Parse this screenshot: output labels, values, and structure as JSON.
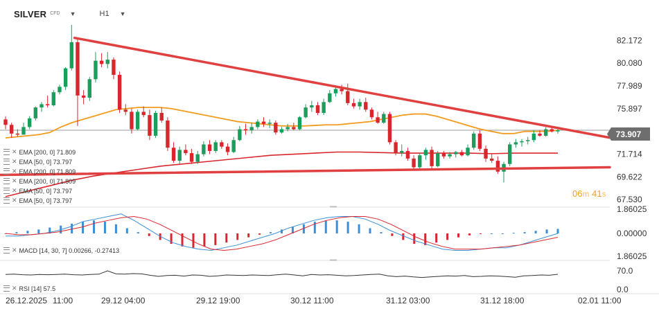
{
  "header": {
    "symbol": "SILVER",
    "instrument_type": "CFD",
    "timeframe": "H1"
  },
  "indicators": [
    {
      "label": "EMA [200, 0]",
      "value": "71.809"
    },
    {
      "label": "EMA [50, 0]",
      "value": "73.797"
    },
    {
      "label": "EMA [200, 0]",
      "value": "71.809"
    },
    {
      "label": "EMA [200, 0]",
      "value": "71.809"
    },
    {
      "label": "EMA [50, 0]",
      "value": "73.797"
    },
    {
      "label": "EMA [50, 0]",
      "value": "73.797"
    }
  ],
  "macd_label": {
    "label": "MACD [14, 30, 7]",
    "value": "0.00266,  -0.27413"
  },
  "rsi_label": {
    "label": "RSI [14]",
    "value": "57.5"
  },
  "countdown": {
    "minutes": "06",
    "min_unit": "m",
    "seconds": "41",
    "sec_unit": "s"
  },
  "current_price": "73.907",
  "colors": {
    "up": "#1a9e5c",
    "down": "#d9262c",
    "ema50": "#f29b1d",
    "ema200": "#d9262c",
    "trendline": "#e04040",
    "macd_line": "#3a8fd6",
    "signal_line": "#d9262c",
    "rsi_line": "#333333"
  },
  "chart_data": [
    {
      "type": "candlestick",
      "title": "SILVER CFD H1",
      "x_ticks": [
        "26.12.2025",
        "11:00",
        "29.12 04:00",
        "29.12 19:00",
        "30.12 11:00",
        "31.12 03:00",
        "31.12 18:00",
        "02.01 11:00"
      ],
      "y_ticks": [
        "82.172",
        "80.080",
        "77.989",
        "75.897",
        "73.907",
        "71.714",
        "69.622",
        "67.530"
      ],
      "ylim": [
        66.9,
        84.1
      ],
      "candles": [
        {
          "o": 74.9,
          "h": 75.2,
          "l": 74.0,
          "c": 74.4
        },
        {
          "o": 74.4,
          "h": 74.6,
          "l": 73.2,
          "c": 73.6
        },
        {
          "o": 73.6,
          "h": 74.0,
          "l": 73.3,
          "c": 73.5
        },
        {
          "o": 73.5,
          "h": 74.6,
          "l": 73.5,
          "c": 74.2
        },
        {
          "o": 74.2,
          "h": 75.2,
          "l": 74.0,
          "c": 75.0
        },
        {
          "o": 75.0,
          "h": 76.1,
          "l": 74.8,
          "c": 76.0
        },
        {
          "o": 76.0,
          "h": 76.5,
          "l": 75.6,
          "c": 76.3
        },
        {
          "o": 76.3,
          "h": 77.1,
          "l": 76.0,
          "c": 76.2
        },
        {
          "o": 76.2,
          "h": 77.6,
          "l": 76.1,
          "c": 77.4
        },
        {
          "o": 77.4,
          "h": 78.1,
          "l": 77.2,
          "c": 77.9
        },
        {
          "o": 77.9,
          "h": 79.7,
          "l": 77.6,
          "c": 79.6
        },
        {
          "o": 79.6,
          "h": 83.6,
          "l": 79.4,
          "c": 82.0
        },
        {
          "o": 82.0,
          "h": 82.4,
          "l": 74.3,
          "c": 77.1
        },
        {
          "o": 77.1,
          "h": 77.6,
          "l": 76.3,
          "c": 76.9
        },
        {
          "o": 76.9,
          "h": 78.8,
          "l": 76.6,
          "c": 78.6
        },
        {
          "o": 78.6,
          "h": 81.1,
          "l": 78.3,
          "c": 80.3
        },
        {
          "o": 80.3,
          "h": 81.0,
          "l": 79.7,
          "c": 80.0
        },
        {
          "o": 80.0,
          "h": 81.1,
          "l": 79.6,
          "c": 80.4
        },
        {
          "o": 80.4,
          "h": 80.6,
          "l": 78.6,
          "c": 79.0
        },
        {
          "o": 79.0,
          "h": 79.3,
          "l": 75.5,
          "c": 75.8
        },
        {
          "o": 75.8,
          "h": 76.3,
          "l": 75.3,
          "c": 75.6
        },
        {
          "o": 75.6,
          "h": 75.9,
          "l": 73.6,
          "c": 74.0
        },
        {
          "o": 74.0,
          "h": 75.8,
          "l": 73.9,
          "c": 75.6
        },
        {
          "o": 75.6,
          "h": 76.1,
          "l": 75.1,
          "c": 75.3
        },
        {
          "o": 75.3,
          "h": 75.8,
          "l": 73.0,
          "c": 73.4
        },
        {
          "o": 73.4,
          "h": 75.7,
          "l": 73.2,
          "c": 75.5
        },
        {
          "o": 75.5,
          "h": 76.0,
          "l": 74.6,
          "c": 74.8
        },
        {
          "o": 74.8,
          "h": 75.1,
          "l": 72.0,
          "c": 72.3
        },
        {
          "o": 72.3,
          "h": 72.8,
          "l": 70.9,
          "c": 71.1
        },
        {
          "o": 71.1,
          "h": 72.4,
          "l": 70.8,
          "c": 72.1
        },
        {
          "o": 72.1,
          "h": 72.6,
          "l": 71.6,
          "c": 71.8
        },
        {
          "o": 71.8,
          "h": 72.2,
          "l": 70.8,
          "c": 71.0
        },
        {
          "o": 71.0,
          "h": 72.0,
          "l": 70.8,
          "c": 71.7
        },
        {
          "o": 71.7,
          "h": 72.9,
          "l": 71.5,
          "c": 72.6
        },
        {
          "o": 72.6,
          "h": 73.0,
          "l": 71.7,
          "c": 72.0
        },
        {
          "o": 72.0,
          "h": 73.0,
          "l": 71.8,
          "c": 72.8
        },
        {
          "o": 72.8,
          "h": 73.0,
          "l": 72.2,
          "c": 72.4
        },
        {
          "o": 72.4,
          "h": 72.7,
          "l": 71.6,
          "c": 71.9
        },
        {
          "o": 71.9,
          "h": 73.3,
          "l": 71.8,
          "c": 73.0
        },
        {
          "o": 73.0,
          "h": 74.3,
          "l": 72.9,
          "c": 74.0
        },
        {
          "o": 74.0,
          "h": 74.5,
          "l": 73.5,
          "c": 73.9
        },
        {
          "o": 73.9,
          "h": 74.6,
          "l": 73.6,
          "c": 74.2
        },
        {
          "o": 74.2,
          "h": 74.9,
          "l": 74.0,
          "c": 74.7
        },
        {
          "o": 74.7,
          "h": 75.1,
          "l": 74.2,
          "c": 74.5
        },
        {
          "o": 74.5,
          "h": 74.9,
          "l": 74.1,
          "c": 74.6
        },
        {
          "o": 74.6,
          "h": 74.8,
          "l": 73.5,
          "c": 73.7
        },
        {
          "o": 73.7,
          "h": 74.2,
          "l": 73.6,
          "c": 74.0
        },
        {
          "o": 74.0,
          "h": 74.5,
          "l": 73.8,
          "c": 74.2
        },
        {
          "o": 74.2,
          "h": 74.6,
          "l": 73.9,
          "c": 74.0
        },
        {
          "o": 74.0,
          "h": 75.2,
          "l": 73.9,
          "c": 75.1
        },
        {
          "o": 75.1,
          "h": 76.3,
          "l": 75.0,
          "c": 76.0
        },
        {
          "o": 76.0,
          "h": 76.6,
          "l": 75.6,
          "c": 76.2
        },
        {
          "o": 76.2,
          "h": 76.5,
          "l": 75.3,
          "c": 75.5
        },
        {
          "o": 75.5,
          "h": 76.8,
          "l": 75.3,
          "c": 76.5
        },
        {
          "o": 76.5,
          "h": 77.6,
          "l": 76.4,
          "c": 77.3
        },
        {
          "o": 77.3,
          "h": 78.0,
          "l": 77.0,
          "c": 77.7
        },
        {
          "o": 77.7,
          "h": 78.1,
          "l": 77.2,
          "c": 77.5
        },
        {
          "o": 77.5,
          "h": 78.2,
          "l": 76.2,
          "c": 76.4
        },
        {
          "o": 76.4,
          "h": 76.8,
          "l": 75.9,
          "c": 76.1
        },
        {
          "o": 76.1,
          "h": 76.8,
          "l": 75.8,
          "c": 76.5
        },
        {
          "o": 76.5,
          "h": 76.9,
          "l": 75.6,
          "c": 75.8
        },
        {
          "o": 75.8,
          "h": 76.0,
          "l": 74.9,
          "c": 75.1
        },
        {
          "o": 75.1,
          "h": 75.6,
          "l": 74.5,
          "c": 74.6
        },
        {
          "o": 74.6,
          "h": 75.6,
          "l": 74.5,
          "c": 75.4
        },
        {
          "o": 75.4,
          "h": 75.6,
          "l": 72.6,
          "c": 72.8
        },
        {
          "o": 72.8,
          "h": 73.0,
          "l": 71.6,
          "c": 71.8
        },
        {
          "o": 71.8,
          "h": 72.6,
          "l": 71.5,
          "c": 72.0
        },
        {
          "o": 72.0,
          "h": 72.3,
          "l": 71.1,
          "c": 71.3
        },
        {
          "o": 71.3,
          "h": 71.6,
          "l": 70.2,
          "c": 70.5
        },
        {
          "o": 70.5,
          "h": 71.8,
          "l": 70.3,
          "c": 71.6
        },
        {
          "o": 71.6,
          "h": 72.3,
          "l": 71.2,
          "c": 72.1
        },
        {
          "o": 72.1,
          "h": 72.4,
          "l": 70.4,
          "c": 70.6
        },
        {
          "o": 70.6,
          "h": 72.0,
          "l": 70.5,
          "c": 71.8
        },
        {
          "o": 71.8,
          "h": 72.0,
          "l": 71.3,
          "c": 71.5
        },
        {
          "o": 71.5,
          "h": 71.9,
          "l": 71.3,
          "c": 71.7
        },
        {
          "o": 71.7,
          "h": 72.0,
          "l": 71.4,
          "c": 71.9
        },
        {
          "o": 71.9,
          "h": 72.1,
          "l": 71.5,
          "c": 71.6
        },
        {
          "o": 71.6,
          "h": 72.6,
          "l": 71.5,
          "c": 72.3
        },
        {
          "o": 72.3,
          "h": 73.8,
          "l": 72.1,
          "c": 73.6
        },
        {
          "o": 73.6,
          "h": 73.9,
          "l": 72.0,
          "c": 72.2
        },
        {
          "o": 72.2,
          "h": 72.5,
          "l": 71.0,
          "c": 71.3
        },
        {
          "o": 71.3,
          "h": 71.7,
          "l": 70.9,
          "c": 71.1
        },
        {
          "o": 71.1,
          "h": 71.5,
          "l": 69.9,
          "c": 70.1
        },
        {
          "o": 70.1,
          "h": 71.0,
          "l": 69.1,
          "c": 70.8
        },
        {
          "o": 70.8,
          "h": 72.8,
          "l": 70.6,
          "c": 72.6
        },
        {
          "o": 72.6,
          "h": 73.1,
          "l": 72.3,
          "c": 72.8
        },
        {
          "o": 72.8,
          "h": 73.1,
          "l": 72.4,
          "c": 72.9
        },
        {
          "o": 72.9,
          "h": 73.3,
          "l": 72.6,
          "c": 73.0
        },
        {
          "o": 73.0,
          "h": 73.9,
          "l": 72.8,
          "c": 73.6
        },
        {
          "o": 73.6,
          "h": 73.9,
          "l": 73.3,
          "c": 73.4
        },
        {
          "o": 73.4,
          "h": 74.2,
          "l": 73.3,
          "c": 74.0
        },
        {
          "o": 74.0,
          "h": 74.3,
          "l": 73.7,
          "c": 73.8
        },
        {
          "o": 73.8,
          "h": 74.1,
          "l": 73.6,
          "c": 73.907
        }
      ],
      "ema50": [
        73.2,
        73.3,
        73.4,
        73.5,
        73.7,
        74.2,
        74.6,
        74.9,
        75.2,
        75.5,
        75.8,
        75.9,
        76.0,
        76.0,
        76.0,
        75.9,
        75.7,
        75.5,
        75.3,
        75.1,
        74.9,
        74.7,
        74.6,
        74.5,
        74.4,
        74.3,
        74.3,
        74.3,
        74.35,
        74.4,
        74.4,
        74.5,
        74.6,
        74.7,
        74.9,
        75.1,
        75.3,
        75.4,
        75.4,
        75.2,
        74.9,
        74.6,
        74.3,
        74.0,
        73.8,
        73.6,
        73.6,
        73.8,
        73.8,
        73.8,
        73.9
      ],
      "ema200": [
        67.8,
        68.3,
        68.8,
        69.3,
        69.7,
        70.0,
        70.3,
        70.6,
        70.8,
        71.0,
        71.2,
        71.4,
        71.6,
        71.7,
        71.8,
        71.9,
        71.9,
        71.85,
        71.8,
        71.8,
        71.8,
        71.8,
        71.75,
        71.8,
        71.8,
        71.8
      ],
      "trendline_upper": [
        [
          11.5,
          82.4
        ],
        [
          97,
          73.6
        ]
      ],
      "trendline_lower": [
        [
          0,
          69.8
        ],
        [
          97,
          70.5
        ]
      ],
      "horizontal_line": 73.907
    },
    {
      "type": "bar",
      "title": "MACD [14, 30, 7]",
      "y_ticks": [
        "1.86025",
        "0.00000",
        "1.86025"
      ],
      "ylim": [
        -1.86025,
        1.86025
      ],
      "histogram": [
        0.0,
        0.1,
        0.2,
        0.3,
        0.45,
        0.6,
        0.75,
        0.9,
        1.0,
        0.9,
        0.7,
        0.4,
        0.1,
        -0.2,
        -0.5,
        -0.8,
        -1.0,
        -1.1,
        -1.0,
        -0.9,
        -0.7,
        -0.5,
        -0.3,
        -0.1,
        0.1,
        0.3,
        0.5,
        0.7,
        0.9,
        1.0,
        1.0,
        0.9,
        0.7,
        0.4,
        0.1,
        -0.2,
        -0.5,
        -0.8,
        -0.9,
        -0.7,
        -0.5,
        -0.3,
        -0.15,
        -0.05,
        0.0,
        0.0,
        0.05,
        0.1,
        0.2,
        0.3,
        0.35
      ],
      "macd": [
        -0.2,
        -0.2,
        -0.1,
        0.0,
        0.2,
        0.5,
        0.9,
        1.1,
        1.3,
        1.5,
        1.0,
        0.4,
        -0.2,
        -0.7,
        -1.0,
        -1.2,
        -1.3,
        -1.1,
        -0.9,
        -0.6,
        -0.3,
        0.0,
        0.4,
        0.7,
        1.0,
        1.2,
        1.3,
        1.3,
        1.1,
        0.7,
        0.2,
        -0.2,
        -0.6,
        -0.9,
        -1.2,
        -1.3,
        -1.3,
        -1.2,
        -1.1,
        -1.1,
        -0.9,
        -0.6,
        -0.3,
        0.0
      ],
      "signal": [
        0.0,
        -0.1,
        -0.1,
        0.0,
        0.1,
        0.3,
        0.5,
        0.8,
        1.0,
        1.2,
        1.3,
        1.1,
        0.7,
        0.2,
        -0.3,
        -0.8,
        -1.2,
        -1.3,
        -1.2,
        -1.0,
        -0.8,
        -0.5,
        -0.1,
        0.3,
        0.7,
        1.0,
        1.2,
        1.3,
        1.3,
        1.1,
        0.7,
        0.2,
        -0.3,
        -0.7,
        -1.0,
        -1.2,
        -1.2,
        -1.2,
        -1.1,
        -1.0,
        -0.9,
        -0.7,
        -0.5,
        -0.3
      ]
    },
    {
      "type": "line",
      "title": "RSI [14]",
      "y_ticks": [
        "70.0",
        "0.0"
      ],
      "ylim": [
        0,
        100
      ],
      "values": [
        57,
        58,
        56,
        55,
        57,
        56,
        57,
        58,
        56,
        55,
        57,
        58,
        70,
        59,
        58,
        60,
        59,
        54,
        50,
        53,
        54,
        51,
        55,
        54,
        50,
        52,
        55,
        54,
        53,
        55,
        54,
        53,
        56,
        58,
        55,
        52,
        57,
        55,
        56,
        54,
        52,
        53,
        55,
        57,
        58,
        52,
        49,
        51,
        48,
        46,
        48,
        50,
        52,
        51,
        53,
        49,
        50,
        52,
        51,
        49,
        47,
        52,
        53,
        55,
        54,
        57.5
      ]
    }
  ]
}
